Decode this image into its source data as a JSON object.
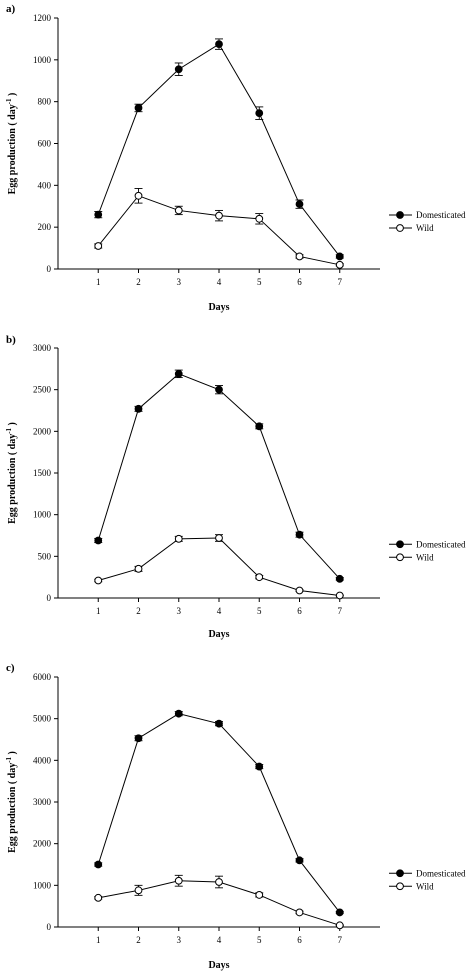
{
  "chart_data": [
    {
      "type": "line",
      "panel_label": "a)",
      "xlabel": "Days",
      "ylabel_main": "Egg production ( day",
      "ylabel_sup": "-1",
      "ylabel_close": ")",
      "ylim": [
        0,
        1200
      ],
      "yticks": [
        0,
        200,
        400,
        600,
        800,
        1000,
        1200
      ],
      "xlim": [
        0,
        8
      ],
      "x": [
        1,
        2,
        3,
        4,
        5,
        6,
        7
      ],
      "legend_position": "right",
      "series": [
        {
          "name": "Domesticated",
          "marker": "filled-circle",
          "values": [
            260,
            770,
            955,
            1075,
            745,
            310,
            60
          ],
          "errors": [
            15,
            18,
            30,
            25,
            30,
            20,
            8
          ]
        },
        {
          "name": "Wild",
          "marker": "open-circle",
          "values": [
            110,
            350,
            280,
            255,
            240,
            60,
            20
          ],
          "errors": [
            10,
            35,
            20,
            25,
            25,
            8,
            5
          ]
        }
      ]
    },
    {
      "type": "line",
      "panel_label": "b)",
      "xlabel": "Days",
      "ylabel_main": "Egg production ( day",
      "ylabel_sup": "-1",
      "ylabel_close": ")",
      "ylim": [
        0,
        3000
      ],
      "yticks": [
        0,
        500,
        1000,
        1500,
        2000,
        2500,
        3000
      ],
      "xlim": [
        0,
        8
      ],
      "x": [
        1,
        2,
        3,
        4,
        5,
        6,
        7
      ],
      "legend_position": "right",
      "series": [
        {
          "name": "Domesticated",
          "marker": "filled-circle",
          "values": [
            690,
            2270,
            2690,
            2500,
            2060,
            760,
            230
          ],
          "errors": [
            25,
            30,
            45,
            50,
            30,
            30,
            15
          ]
        },
        {
          "name": "Wild",
          "marker": "open-circle",
          "values": [
            210,
            350,
            710,
            720,
            250,
            90,
            30
          ],
          "errors": [
            15,
            30,
            30,
            40,
            20,
            10,
            5
          ]
        }
      ]
    },
    {
      "type": "line",
      "panel_label": "c)",
      "xlabel": "Days",
      "ylabel_main": "Egg production ( day",
      "ylabel_sup": "-1",
      "ylabel_close": ")",
      "ylim": [
        0,
        6000
      ],
      "yticks": [
        0,
        1000,
        2000,
        3000,
        4000,
        5000,
        6000
      ],
      "xlim": [
        0,
        8
      ],
      "x": [
        1,
        2,
        3,
        4,
        5,
        6,
        7
      ],
      "legend_position": "right",
      "series": [
        {
          "name": "Domesticated",
          "marker": "filled-circle",
          "values": [
            1500,
            4530,
            5120,
            4880,
            3850,
            1600,
            350
          ],
          "errors": [
            40,
            60,
            50,
            50,
            50,
            40,
            20
          ]
        },
        {
          "name": "Wild",
          "marker": "open-circle",
          "values": [
            700,
            880,
            1110,
            1080,
            770,
            350,
            40
          ],
          "errors": [
            30,
            120,
            130,
            140,
            50,
            30,
            10
          ]
        }
      ]
    }
  ]
}
